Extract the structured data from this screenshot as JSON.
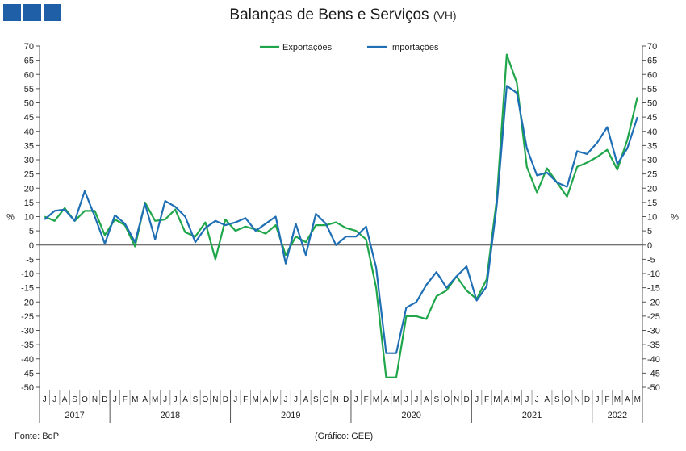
{
  "header": {
    "title": "Balanças de Bens e Serviços",
    "subtitle": "(VH)",
    "logo_color": "#1f5fa8"
  },
  "footer": {
    "source": "Fonte: BdP",
    "credit": "(Gráfico: GEE)"
  },
  "chart_data": {
    "type": "line",
    "title": "Balanças de Bens e Serviços",
    "subtitle": "(VH)",
    "ylabel": "%",
    "ylim": [
      -50,
      70
    ],
    "yticks": [
      70,
      65,
      60,
      55,
      50,
      45,
      40,
      35,
      30,
      25,
      20,
      15,
      10,
      5,
      0,
      -5,
      -10,
      -15,
      -20,
      -25,
      -30,
      -35,
      -40,
      -45,
      -50
    ],
    "grid": false,
    "legend": "top-center",
    "month_labels": [
      "J",
      "J",
      "A",
      "S",
      "O",
      "N",
      "D",
      "J",
      "F",
      "M",
      "A",
      "M",
      "J",
      "J",
      "A",
      "S",
      "O",
      "N",
      "D",
      "J",
      "F",
      "M",
      "A",
      "M",
      "J",
      "J",
      "A",
      "S",
      "O",
      "N",
      "D",
      "J",
      "F",
      "M",
      "A",
      "M",
      "J",
      "J",
      "A",
      "S",
      "O",
      "N",
      "D",
      "J",
      "F",
      "M",
      "A",
      "M",
      "J",
      "J",
      "A",
      "S",
      "O",
      "N",
      "D",
      "J",
      "F",
      "M",
      "A",
      "M"
    ],
    "years": [
      {
        "label": "2017",
        "count": 7
      },
      {
        "label": "2018",
        "count": 12
      },
      {
        "label": "2019",
        "count": 12
      },
      {
        "label": "2020",
        "count": 12
      },
      {
        "label": "2021",
        "count": 12
      },
      {
        "label": "2022",
        "count": 5
      }
    ],
    "series": [
      {
        "name": "Exportações",
        "color": "#1fa64a",
        "values": [
          10,
          8.5,
          13,
          8.5,
          12,
          12,
          3.5,
          9,
          7,
          -0.5,
          15,
          8.5,
          9,
          12.5,
          4.5,
          3,
          8,
          -5,
          9,
          5,
          6.5,
          5.5,
          4,
          7,
          -3.5,
          3,
          1,
          7,
          7,
          8,
          6,
          5,
          2,
          -15,
          -46.5,
          -46.5,
          -25,
          -25,
          -26,
          -18,
          -16,
          -11,
          -16,
          -19,
          -12,
          16,
          67,
          57,
          27.5,
          18.5,
          27,
          22,
          17,
          27.5,
          29,
          31,
          33.5,
          26.5,
          37,
          52
        ]
      },
      {
        "name": "Importações",
        "color": "#1f6fb5",
        "values": [
          9,
          12,
          12.5,
          8.5,
          19,
          10,
          0.5,
          10.5,
          7.5,
          1,
          14.5,
          2,
          15.5,
          13.5,
          10,
          1,
          6,
          8.5,
          7,
          8,
          9.5,
          5,
          7.5,
          10,
          -6.5,
          7.5,
          -3.5,
          11,
          7.5,
          0,
          3,
          3,
          6.5,
          -8,
          -38,
          -38,
          -22,
          -20,
          -14,
          -9.5,
          -15,
          -11,
          -7.5,
          -19.5,
          -14.5,
          14,
          56,
          53.5,
          34,
          24.5,
          25.5,
          22,
          20.5,
          33,
          32,
          36,
          41.5,
          28.5,
          34,
          45
        ]
      }
    ]
  }
}
